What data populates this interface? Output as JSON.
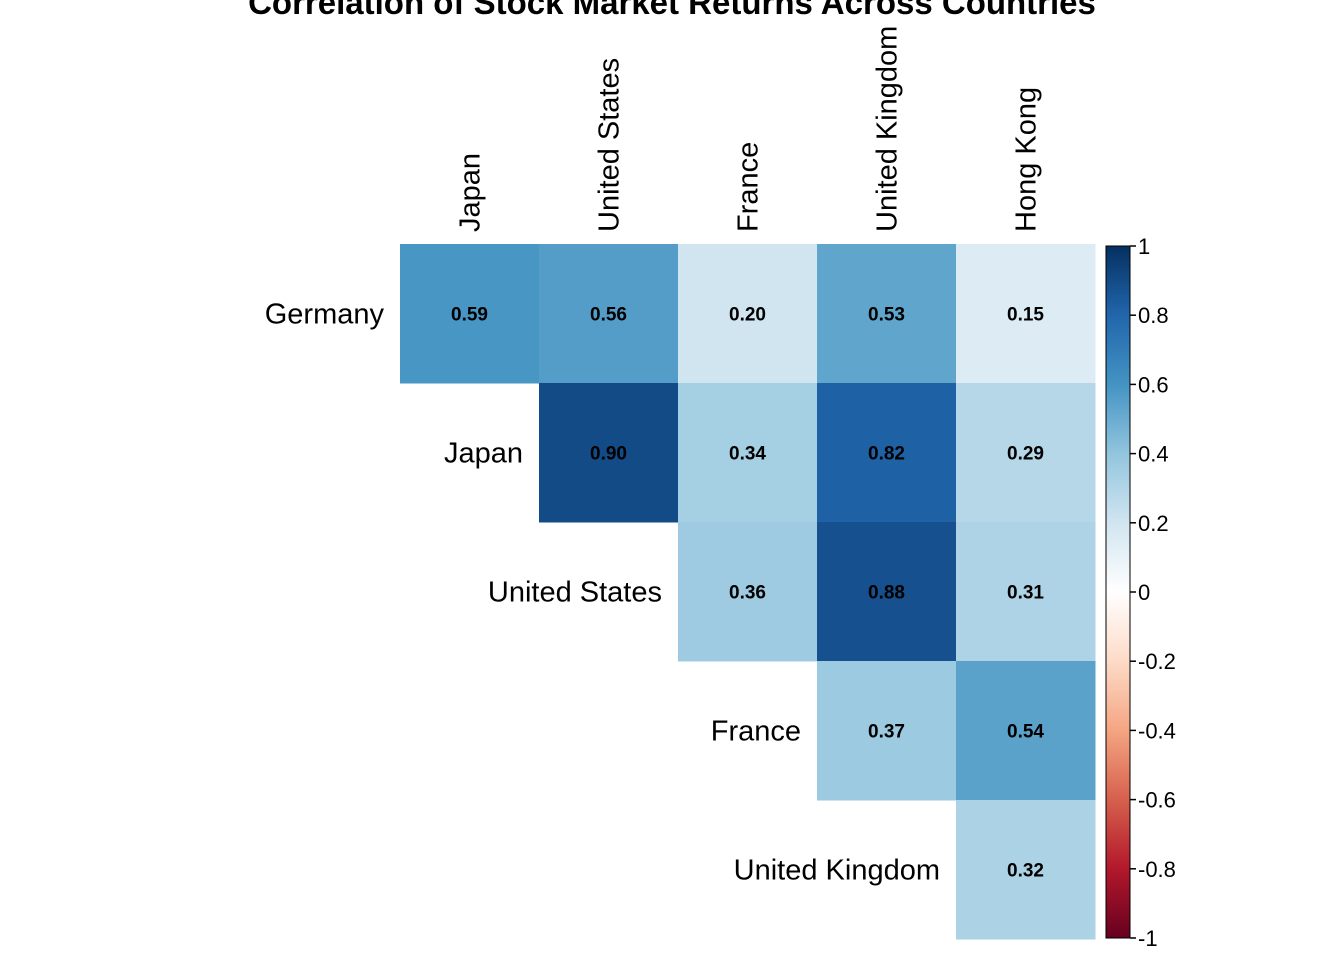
{
  "chart_data": {
    "type": "heatmap",
    "title": "Correlation of Stock Market Returns Across Countries",
    "layout": "upper-triangle",
    "col_labels": [
      "Japan",
      "United States",
      "France",
      "United Kingdom",
      "Hong Kong"
    ],
    "row_labels": [
      "Germany",
      "Japan",
      "United States",
      "France",
      "United Kingdom"
    ],
    "cells": [
      {
        "row": "Germany",
        "col": "Japan",
        "value": 0.59,
        "label": "0.59"
      },
      {
        "row": "Germany",
        "col": "United States",
        "value": 0.56,
        "label": "0.56"
      },
      {
        "row": "Germany",
        "col": "France",
        "value": 0.2,
        "label": "0.20"
      },
      {
        "row": "Germany",
        "col": "United Kingdom",
        "value": 0.53,
        "label": "0.53"
      },
      {
        "row": "Germany",
        "col": "Hong Kong",
        "value": 0.15,
        "label": "0.15"
      },
      {
        "row": "Japan",
        "col": "United States",
        "value": 0.9,
        "label": "0.90"
      },
      {
        "row": "Japan",
        "col": "France",
        "value": 0.34,
        "label": "0.34"
      },
      {
        "row": "Japan",
        "col": "United Kingdom",
        "value": 0.82,
        "label": "0.82"
      },
      {
        "row": "Japan",
        "col": "Hong Kong",
        "value": 0.29,
        "label": "0.29"
      },
      {
        "row": "United States",
        "col": "France",
        "value": 0.36,
        "label": "0.36"
      },
      {
        "row": "United States",
        "col": "United Kingdom",
        "value": 0.88,
        "label": "0.88"
      },
      {
        "row": "United States",
        "col": "Hong Kong",
        "value": 0.31,
        "label": "0.31"
      },
      {
        "row": "France",
        "col": "United Kingdom",
        "value": 0.37,
        "label": "0.37"
      },
      {
        "row": "France",
        "col": "Hong Kong",
        "value": 0.54,
        "label": "0.54"
      },
      {
        "row": "United Kingdom",
        "col": "Hong Kong",
        "value": 0.32,
        "label": "0.32"
      }
    ],
    "colorbar": {
      "range": [
        -1,
        1
      ],
      "ticks": [
        1,
        0.8,
        0.6,
        0.4,
        0.2,
        0,
        -0.2,
        -0.4,
        -0.6,
        -0.8,
        -1
      ],
      "tick_labels": [
        "1",
        "0.8",
        "0.6",
        "0.4",
        "0.2",
        "0",
        "-0.2",
        "-0.4",
        "-0.6",
        "-0.8",
        "-1"
      ],
      "colormap": "RdBu",
      "color_stops": [
        "#67001F",
        "#B2182B",
        "#D6604D",
        "#F4A582",
        "#FDDBC7",
        "#FFFFFF",
        "#D1E5F0",
        "#92C5DE",
        "#4393C3",
        "#2166AC",
        "#053061"
      ]
    }
  }
}
